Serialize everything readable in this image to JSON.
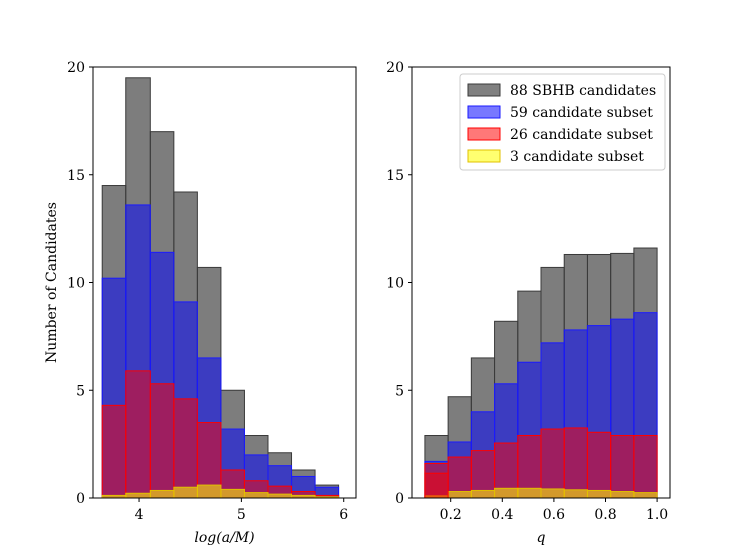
{
  "chart_data": [
    {
      "type": "histogram",
      "xlabel": "log(a/M)",
      "ylabel": "Number of Candidates",
      "xlim": [
        3.55,
        6.12
      ],
      "ylim": [
        0,
        20
      ],
      "xticks": [
        4,
        5,
        6
      ],
      "yticks": [
        0,
        5,
        10,
        15,
        20
      ],
      "bin_edges": [
        3.64,
        3.87,
        4.11,
        4.34,
        4.57,
        4.8,
        5.03,
        5.26,
        5.49,
        5.72,
        5.95
      ],
      "series": [
        {
          "name": "88 SBHB candidates",
          "color": "#808080",
          "values": [
            14.5,
            19.5,
            17.0,
            14.2,
            10.7,
            5.0,
            2.9,
            2.1,
            1.3,
            0.6
          ]
        },
        {
          "name": "59 candidate subset",
          "color": "#3f3fc8",
          "values": [
            10.2,
            13.6,
            11.4,
            9.1,
            6.5,
            3.2,
            2.0,
            1.5,
            1.0,
            0.5
          ]
        },
        {
          "name": "26 candidate subset",
          "color": "#a0195a",
          "values": [
            4.3,
            5.9,
            5.3,
            4.6,
            3.5,
            1.3,
            0.8,
            0.55,
            0.3,
            0.12
          ]
        },
        {
          "name": "3 candidate subset",
          "color": "#e0a020",
          "values": [
            0.12,
            0.22,
            0.35,
            0.5,
            0.6,
            0.4,
            0.25,
            0.18,
            0.12,
            0.05
          ]
        }
      ]
    },
    {
      "type": "histogram",
      "xlabel": "q",
      "ylabel": "",
      "xlim": [
        0.05,
        1.05
      ],
      "ylim": [
        0,
        20
      ],
      "xticks": [
        0.2,
        0.4,
        0.6,
        0.8,
        1.0
      ],
      "yticks": [
        0,
        5,
        10,
        15,
        20
      ],
      "bin_edges": [
        0.1,
        0.19,
        0.28,
        0.37,
        0.46,
        0.55,
        0.64,
        0.73,
        0.82,
        0.91,
        1.0
      ],
      "series": [
        {
          "name": "88 SBHB candidates",
          "color": "#808080",
          "values": [
            2.9,
            4.7,
            6.5,
            8.2,
            9.6,
            10.7,
            11.3,
            11.3,
            11.35,
            11.6
          ]
        },
        {
          "name": "59 candidate subset",
          "color": "#3f3fc8",
          "values": [
            1.7,
            2.6,
            4.0,
            5.3,
            6.3,
            7.2,
            7.8,
            8.0,
            8.3,
            8.6
          ]
        },
        {
          "name": "26 candidate subset",
          "color": "#a0195a",
          "values": [
            1.15,
            1.9,
            2.2,
            2.55,
            2.9,
            3.2,
            3.25,
            3.05,
            2.9,
            2.9
          ]
        },
        {
          "name": "3 candidate subset",
          "color": "#e0a020",
          "values": [
            0.1,
            0.3,
            0.35,
            0.45,
            0.45,
            0.42,
            0.38,
            0.35,
            0.3,
            0.25
          ]
        }
      ],
      "extra_bins": [
        {
          "series": "26 candidate subset",
          "left": 0.1,
          "right": 0.19,
          "value": 1.6,
          "color": "#d04040"
        }
      ]
    }
  ],
  "legend": {
    "placement": "top-right",
    "entries": [
      {
        "label": "88 SBHB candidates",
        "color": "#808080"
      },
      {
        "label": "59 candidate subset",
        "color": "#7878ff"
      },
      {
        "label": "26 candidate subset",
        "color": "#ff7878"
      },
      {
        "label": "3 candidate subset",
        "color": "#ffff70"
      }
    ]
  }
}
